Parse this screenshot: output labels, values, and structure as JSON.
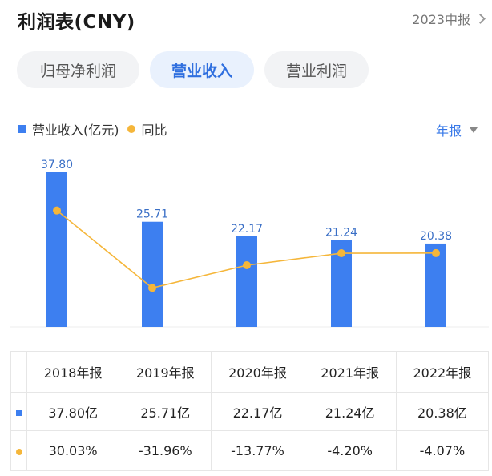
{
  "header": {
    "title": "利润表(CNY)",
    "period": "2023中报"
  },
  "tabs": [
    {
      "label": "归母净利润",
      "active": false
    },
    {
      "label": "营业收入",
      "active": true
    },
    {
      "label": "营业利润",
      "active": false
    }
  ],
  "legend": {
    "bar_label": "营业收入(亿元)",
    "line_label": "同比"
  },
  "report_select": "年报",
  "colors": {
    "bar": "#3d7ff0",
    "line": "#f5b63a",
    "positive": "#e0414a",
    "negative": "#1f9a5b",
    "accent": "#2f6fdf"
  },
  "chart_data": {
    "type": "bar",
    "categories": [
      "2018年报",
      "2019年报",
      "2020年报",
      "2021年报",
      "2022年报"
    ],
    "series": [
      {
        "name": "营业收入(亿元)",
        "type": "bar",
        "values": [
          37.8,
          25.71,
          22.17,
          21.24,
          20.38
        ]
      },
      {
        "name": "同比",
        "type": "line",
        "values": [
          30.03,
          -31.96,
          -13.77,
          -4.2,
          -4.07
        ]
      }
    ],
    "data_labels": [
      "37.80",
      "25.71",
      "22.17",
      "21.24",
      "20.38"
    ],
    "legend_position": "top-left",
    "grid": false
  },
  "table": {
    "years": [
      "2018年报",
      "2019年报",
      "2020年报",
      "2021年报",
      "2022年报"
    ],
    "revenue": [
      "37.80亿",
      "25.71亿",
      "22.17亿",
      "21.24亿",
      "20.38亿"
    ],
    "yoy": [
      "30.03%",
      "-31.96%",
      "-13.77%",
      "-4.20%",
      "-4.07%"
    ]
  }
}
